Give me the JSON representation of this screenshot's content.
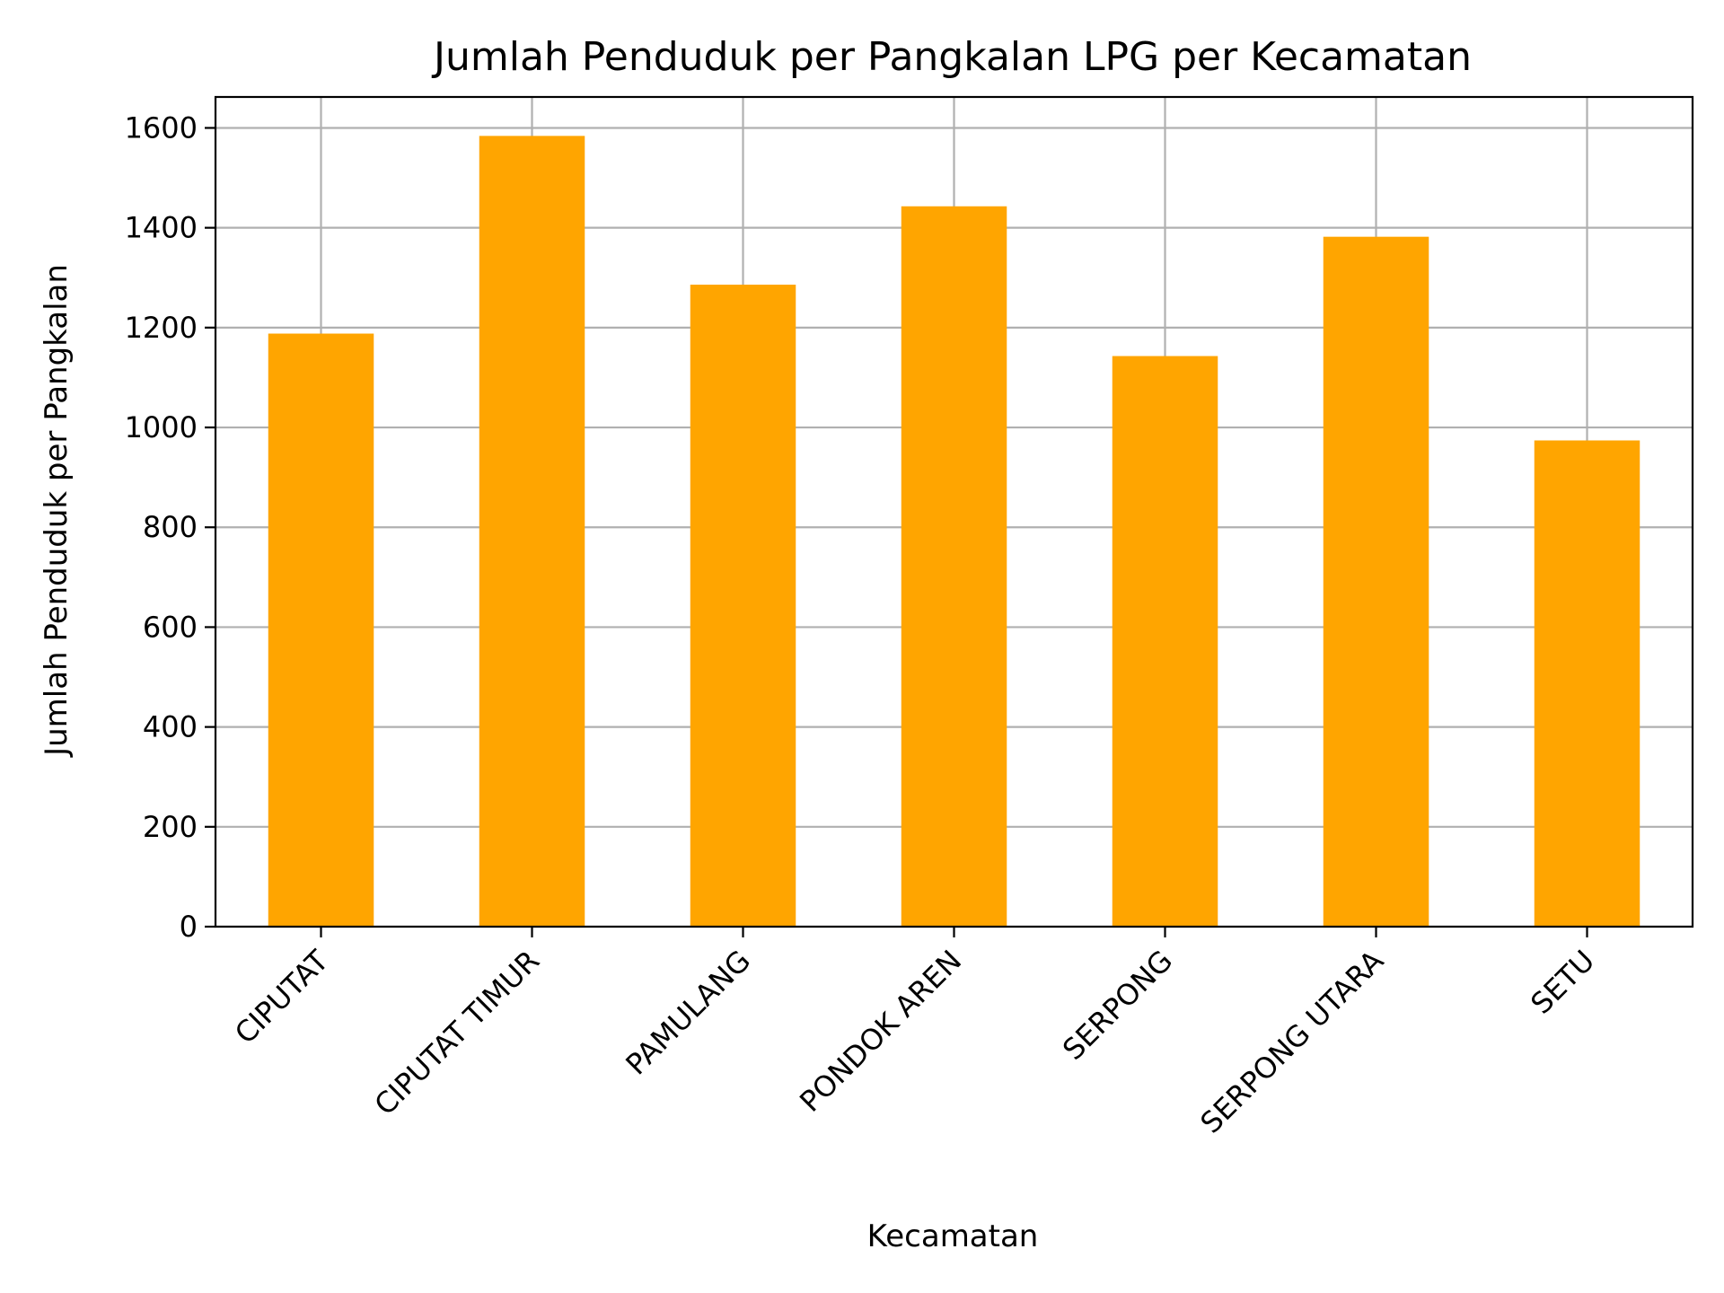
{
  "chart_data": {
    "type": "bar",
    "title": "Jumlah Penduduk per Pangkalan LPG per Kecamatan",
    "xlabel": "Kecamatan",
    "ylabel": "Jumlah Penduduk per Pangkalan",
    "categories": [
      "CIPUTAT",
      "CIPUTAT TIMUR",
      "PAMULANG",
      "PONDOK AREN",
      "SERPONG",
      "SERPONG UTARA",
      "SETU"
    ],
    "values": [
      1188,
      1584,
      1286,
      1443,
      1143,
      1382,
      974
    ],
    "ylim": [
      0,
      1662
    ],
    "yticks": [
      0,
      200,
      400,
      600,
      800,
      1000,
      1200,
      1400,
      1600
    ],
    "grid": true,
    "bar_color": "#ffa500",
    "grid_color": "#b0b0b0"
  }
}
